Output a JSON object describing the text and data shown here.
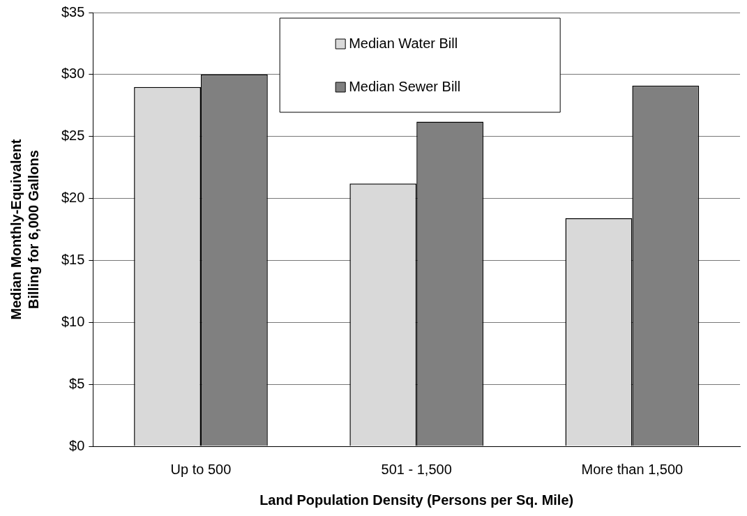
{
  "chart_data": {
    "type": "bar",
    "xlabel": "Land Population Density (Persons per Sq. Mile)",
    "ylabel": "Median Monthly-Equivalent\nBilling for 6,000 Gallons",
    "categories": [
      "Up to 500",
      "501 - 1,500",
      "More than 1,500"
    ],
    "series": [
      {
        "name": "Median Water Bill",
        "color": "#d9d9d9",
        "values": [
          29.0,
          21.2,
          18.4
        ]
      },
      {
        "name": "Median Sewer Bill",
        "color": "#808080",
        "values": [
          30.0,
          26.2,
          29.1
        ]
      }
    ],
    "ylim": [
      0,
      35
    ],
    "yticks": [
      {
        "value": 0,
        "label": "$0"
      },
      {
        "value": 5,
        "label": "$5"
      },
      {
        "value": 10,
        "label": "$10"
      },
      {
        "value": 15,
        "label": "$15"
      },
      {
        "value": 20,
        "label": "$20"
      },
      {
        "value": 25,
        "label": "$25"
      },
      {
        "value": 30,
        "label": "$30"
      },
      {
        "value": 35,
        "label": "$35"
      }
    ],
    "grid": "y",
    "legend": "top"
  }
}
